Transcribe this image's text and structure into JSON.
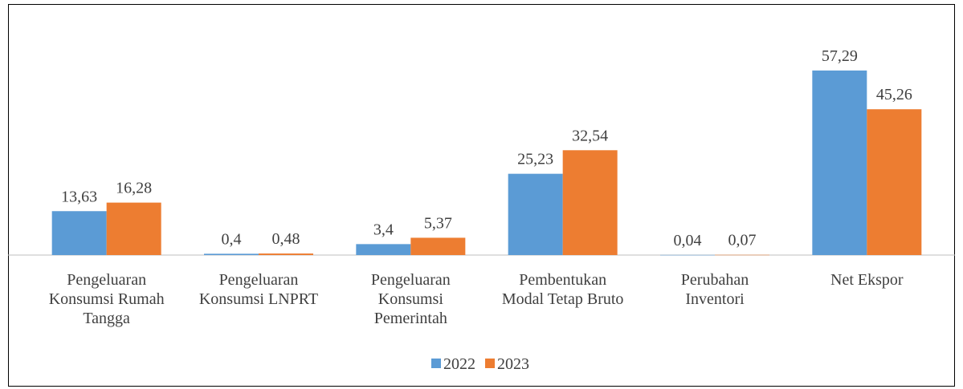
{
  "chart_data": {
    "type": "bar",
    "categories": [
      "Pengeluaran\nKonsumsi Rumah\nTangga",
      "Pengeluaran\nKonsumsi LNPRT",
      "Pengeluaran\nKonsumsi\nPemerintah",
      "Pembentukan\nModal Tetap Bruto",
      "Perubahan\nInventori",
      "Net Ekspor"
    ],
    "series": [
      {
        "name": "2022",
        "color": "#5b9bd5",
        "values": [
          13.63,
          0.4,
          3.4,
          25.23,
          0.04,
          57.29
        ],
        "value_labels": [
          "13,63",
          "0,4",
          "3,4",
          "25,23",
          "0,04",
          "57,29"
        ]
      },
      {
        "name": "2023",
        "color": "#ed7d31",
        "values": [
          16.28,
          0.48,
          5.37,
          32.54,
          0.07,
          45.26
        ],
        "value_labels": [
          "16,28",
          "0,48",
          "5,37",
          "32,54",
          "0,07",
          "45,26"
        ]
      }
    ],
    "ylim": [
      0,
      60
    ],
    "legend": "bottom"
  }
}
